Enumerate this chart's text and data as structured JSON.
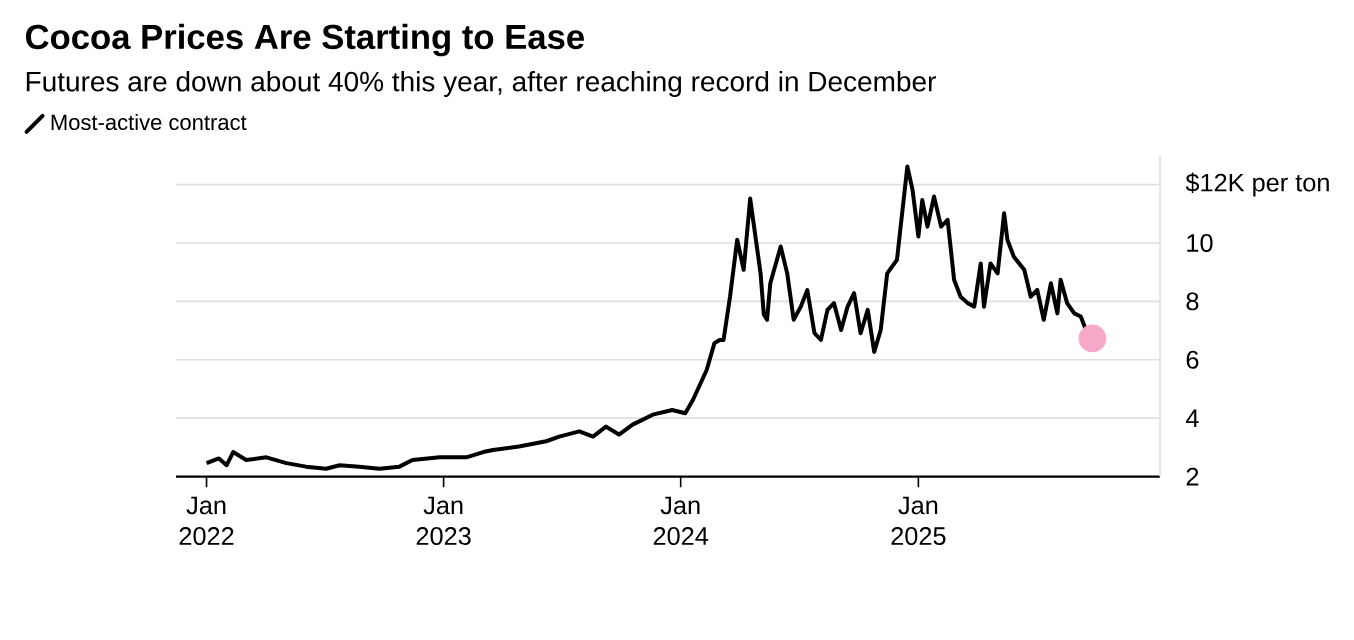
{
  "chart_data": {
    "type": "line",
    "title": "Cocoa Prices Are Starting to Ease",
    "subtitle": "Futures are down about 40% this year, after reaching record in December",
    "series": [
      {
        "name": "Most-active contract",
        "color": "#000000",
        "marker": "none",
        "x": [
          "2022-01-01",
          "2022-01-20",
          "2022-02-01",
          "2022-02-11",
          "2022-03-03",
          "2022-04-03",
          "2022-05-04",
          "2022-06-03",
          "2022-07-04",
          "2022-07-25",
          "2022-08-24",
          "2022-09-24",
          "2022-10-25",
          "2022-11-14",
          "2022-12-26",
          "2023-02-05",
          "2023-03-03",
          "2023-03-18",
          "2023-04-27",
          "2023-06-08",
          "2023-06-28",
          "2023-07-29",
          "2023-08-19",
          "2023-09-08",
          "2023-09-28",
          "2023-10-19",
          "2023-11-19",
          "2023-12-19",
          "2024-01-08",
          "2024-01-20",
          "2024-02-10",
          "2024-02-22",
          "2024-03-01",
          "2024-03-07",
          "2024-03-17",
          "2024-03-28",
          "2024-04-07",
          "2024-04-17",
          "2024-04-23",
          "2024-05-03",
          "2024-05-08",
          "2024-05-13",
          "2024-05-18",
          "2024-06-03",
          "2024-06-13",
          "2024-06-23",
          "2024-07-04",
          "2024-07-14",
          "2024-07-25",
          "2024-08-04",
          "2024-08-14",
          "2024-08-24",
          "2024-09-04",
          "2024-09-14",
          "2024-09-24",
          "2024-10-04",
          "2024-10-15",
          "2024-10-25",
          "2024-11-04",
          "2024-11-14",
          "2024-11-29",
          "2024-12-15",
          "2024-12-23",
          "2025-01-01",
          "2025-01-07",
          "2025-01-15",
          "2025-01-25",
          "2025-02-05",
          "2025-02-15",
          "2025-02-25",
          "2025-03-07",
          "2025-03-18",
          "2025-03-28",
          "2025-04-07",
          "2025-04-12",
          "2025-04-22",
          "2025-05-03",
          "2025-05-13",
          "2025-05-18",
          "2025-05-28",
          "2025-06-13",
          "2025-06-23",
          "2025-07-03",
          "2025-07-13",
          "2025-07-24",
          "2025-08-03",
          "2025-08-08",
          "2025-08-18",
          "2025-08-29",
          "2025-09-08",
          "2025-09-18"
        ],
        "values": [
          2.46,
          2.62,
          2.39,
          2.84,
          2.57,
          2.66,
          2.46,
          2.34,
          2.27,
          2.39,
          2.34,
          2.27,
          2.34,
          2.57,
          2.66,
          2.66,
          2.84,
          2.91,
          3.03,
          3.21,
          3.37,
          3.55,
          3.37,
          3.71,
          3.44,
          3.78,
          4.12,
          4.28,
          4.17,
          4.63,
          5.65,
          6.57,
          6.68,
          6.68,
          8.16,
          10.11,
          9.08,
          11.52,
          10.56,
          8.96,
          7.55,
          7.37,
          8.62,
          9.88,
          8.96,
          7.37,
          7.82,
          8.39,
          6.91,
          6.68,
          7.71,
          7.94,
          7.02,
          7.82,
          8.28,
          6.91,
          7.71,
          6.27,
          7.02,
          8.96,
          9.42,
          12.62,
          11.82,
          10.22,
          11.47,
          10.56,
          11.59,
          10.56,
          10.79,
          8.74,
          8.16,
          7.94,
          7.82,
          9.3,
          7.82,
          9.3,
          8.96,
          11.02,
          10.11,
          9.53,
          9.08,
          8.16,
          8.39,
          7.37,
          8.62,
          7.59,
          8.74,
          7.94,
          7.59,
          7.48,
          6.91
        ]
      },
      {
        "type": "scatter",
        "color": "#f7a8c8",
        "marker": "circle",
        "x": [
          "2025-09-26"
        ],
        "values": [
          6.73
        ]
      }
    ],
    "xlim": [
      "2021-11-15",
      "2026-01-08"
    ],
    "xticks": [
      {
        "value": "2022-01",
        "label": "Jan 2022"
      },
      {
        "value": "2023-01",
        "label": "Jan 2023"
      },
      {
        "value": "2024-01",
        "label": "Jan 2024"
      },
      {
        "value": "2025-01",
        "label": "Jan 2025"
      }
    ],
    "ylim": [
      2,
      13
    ],
    "yticks": [
      2,
      4,
      6,
      8,
      10,
      {
        "value": 12,
        "label": "$12K per ton"
      }
    ],
    "grid": "y",
    "legend": "top left",
    "line_style": "solid"
  }
}
